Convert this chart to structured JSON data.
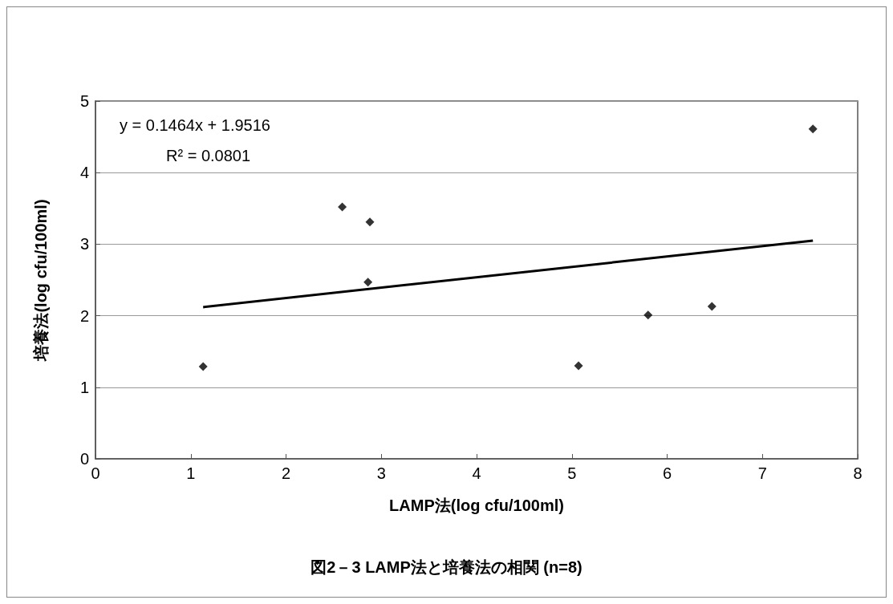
{
  "chart_data": {
    "type": "scatter",
    "title": "図2－3 LAMP法と培養法の相関 (n=8)",
    "xlabel": "LAMP法(log cfu/100ml)",
    "ylabel": "培養法(log cfu/100ml)",
    "annotations": [
      "y = 0.1464x + 1.9516",
      "R² = 0.0801"
    ],
    "series": [
      {
        "color": "#000000",
        "x": [
          1.13,
          2.59,
          2.88,
          2.86,
          5.07,
          5.8,
          6.47,
          7.53
        ],
        "values": [
          1.29,
          3.52,
          3.31,
          2.47,
          1.3,
          2.01,
          2.13,
          4.61
        ]
      },
      {
        "type": "line",
        "color": "#000000",
        "marker": "none",
        "x": [
          1.13,
          7.53
        ],
        "values": [
          2.12,
          3.05
        ]
      }
    ],
    "xlim": [
      0,
      8
    ],
    "xticks": [
      0,
      1,
      2,
      3,
      4,
      5,
      6,
      7,
      8
    ],
    "ylim": [
      0,
      5
    ],
    "yticks": [
      0,
      1,
      2,
      3,
      4,
      5
    ],
    "grid": "y",
    "marker": "diamond"
  }
}
